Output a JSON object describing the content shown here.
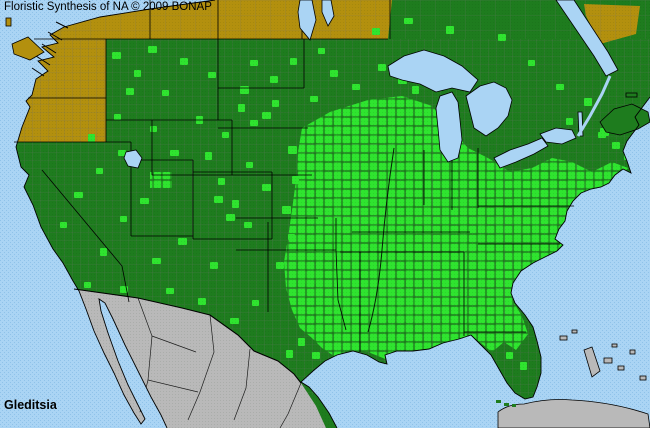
{
  "header": {
    "title": "Floristic Synthesis of NA © 2009 BONAP"
  },
  "footer": {
    "taxon": "Gleditsia"
  },
  "map": {
    "colors": {
      "water": "#aad4f4",
      "water_dot": "#8fc2e9",
      "present_state": "#1e7c1e",
      "present_county": "#2fe42f",
      "absent_state": "#b3900e",
      "no_data_land": "#b9b9b9",
      "state_border": "#000000",
      "county_border": "#6f6f6f",
      "text": "#000000"
    }
  }
}
